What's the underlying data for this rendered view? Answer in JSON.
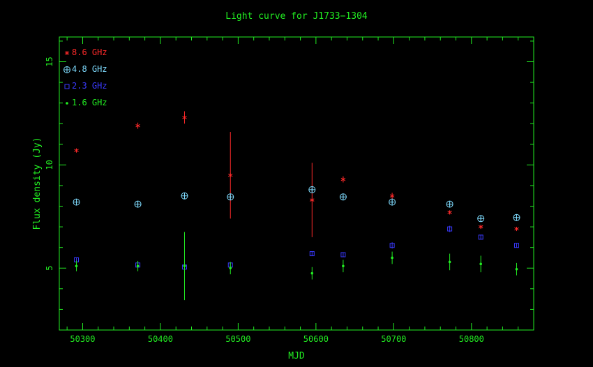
{
  "chart_data": {
    "type": "scatter",
    "title": "Light curve for J1733−1304",
    "xlabel": "MJD",
    "ylabel": "Flux density (Jy)",
    "xlim": [
      50270,
      50880
    ],
    "ylim": [
      2.0,
      16.2
    ],
    "xticks": [
      50300,
      50400,
      50500,
      50600,
      50700,
      50800
    ],
    "yticks": [
      5,
      10,
      15
    ],
    "legend_position": "top-left",
    "series": [
      {
        "name": "8.6 GHz",
        "color": "#ff2a2a",
        "marker": "asterisk",
        "points": [
          {
            "x": 50292,
            "y": 10.7,
            "err": 0.1
          },
          {
            "x": 50371,
            "y": 11.9,
            "err": 0.15
          },
          {
            "x": 50431,
            "y": 12.3,
            "err": 0.3
          },
          {
            "x": 50490,
            "y": 9.5,
            "err": 2.1
          },
          {
            "x": 50595,
            "y": 8.3,
            "err": 1.8
          },
          {
            "x": 50635,
            "y": 9.3,
            "err": 0.15
          },
          {
            "x": 50698,
            "y": 8.5,
            "err": 0.15
          },
          {
            "x": 50772,
            "y": 7.7,
            "err": 0.1
          },
          {
            "x": 50812,
            "y": 7.0,
            "err": 0.1
          },
          {
            "x": 50858,
            "y": 6.9,
            "err": 0.1
          }
        ]
      },
      {
        "name": "4.8 GHz",
        "color": "#7fdcff",
        "marker": "circle-plus",
        "points": [
          {
            "x": 50292,
            "y": 8.2,
            "err": 0.1
          },
          {
            "x": 50371,
            "y": 8.1,
            "err": 0.1
          },
          {
            "x": 50431,
            "y": 8.5,
            "err": 0.1
          },
          {
            "x": 50490,
            "y": 8.45,
            "err": 0.1
          },
          {
            "x": 50595,
            "y": 8.8,
            "err": 0.1
          },
          {
            "x": 50635,
            "y": 8.45,
            "err": 0.1
          },
          {
            "x": 50698,
            "y": 8.2,
            "err": 0.1
          },
          {
            "x": 50772,
            "y": 8.1,
            "err": 0.1
          },
          {
            "x": 50812,
            "y": 7.4,
            "err": 0.1
          },
          {
            "x": 50858,
            "y": 7.45,
            "err": 0.1
          }
        ]
      },
      {
        "name": "2.3 GHz",
        "color": "#3a3aff",
        "marker": "square",
        "points": [
          {
            "x": 50292,
            "y": 5.4,
            "err": 0.1
          },
          {
            "x": 50371,
            "y": 5.15,
            "err": 0.15
          },
          {
            "x": 50431,
            "y": 5.05,
            "err": 0.15
          },
          {
            "x": 50490,
            "y": 5.15,
            "err": 0.1
          },
          {
            "x": 50595,
            "y": 5.7,
            "err": 0.1
          },
          {
            "x": 50635,
            "y": 5.65,
            "err": 0.1
          },
          {
            "x": 50698,
            "y": 6.1,
            "err": 0.15
          },
          {
            "x": 50772,
            "y": 6.9,
            "err": 0.15
          },
          {
            "x": 50812,
            "y": 6.5,
            "err": 0.1
          },
          {
            "x": 50858,
            "y": 6.1,
            "err": 0.1
          }
        ]
      },
      {
        "name": "1.6 GHz",
        "color": "#22ee22",
        "marker": "dot",
        "points": [
          {
            "x": 50292,
            "y": 5.1,
            "err": 0.25
          },
          {
            "x": 50371,
            "y": 5.1,
            "err": 0.25
          },
          {
            "x": 50431,
            "y": 5.1,
            "err": 1.65
          },
          {
            "x": 50490,
            "y": 5.0,
            "err": 0.3
          },
          {
            "x": 50595,
            "y": 4.75,
            "err": 0.3
          },
          {
            "x": 50635,
            "y": 5.1,
            "err": 0.3
          },
          {
            "x": 50698,
            "y": 5.5,
            "err": 0.3
          },
          {
            "x": 50772,
            "y": 5.3,
            "err": 0.4
          },
          {
            "x": 50812,
            "y": 5.2,
            "err": 0.4
          },
          {
            "x": 50858,
            "y": 4.95,
            "err": 0.3
          }
        ]
      }
    ],
    "colors": {
      "axes": "#22ee22",
      "title": "#22ee22",
      "background": "#000000"
    }
  }
}
